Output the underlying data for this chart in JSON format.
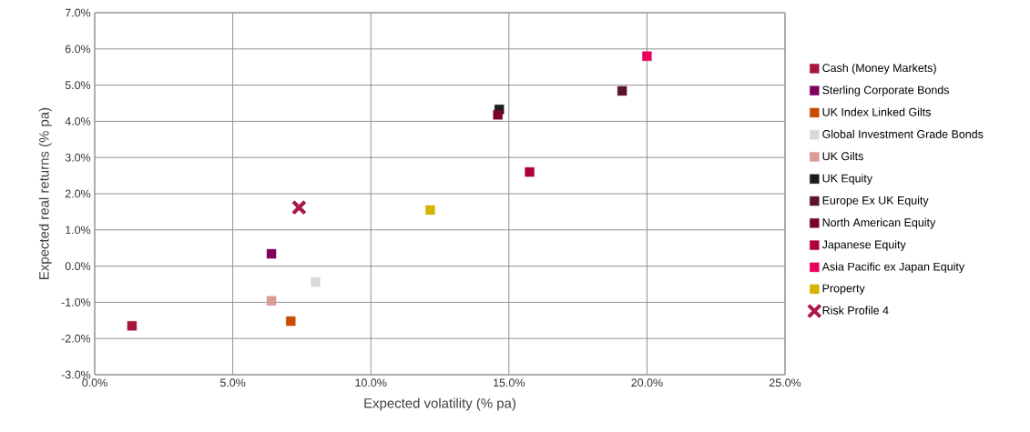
{
  "chart_data": {
    "type": "scatter",
    "xlabel": "Expected volatility (% pa)",
    "ylabel": "Expected real returns (% pa)",
    "xlim": [
      0,
      25
    ],
    "ylim": [
      -3,
      7
    ],
    "xticks": [
      {
        "value": 0,
        "label": "0.0%"
      },
      {
        "value": 5,
        "label": "5.0%"
      },
      {
        "value": 10,
        "label": "10.0%"
      },
      {
        "value": 15,
        "label": "15.0%"
      },
      {
        "value": 20,
        "label": "20.0%"
      },
      {
        "value": 25,
        "label": "25.0%"
      }
    ],
    "yticks": [
      {
        "value": -3,
        "label": "-3.0%"
      },
      {
        "value": -2,
        "label": "-2.0%"
      },
      {
        "value": -1,
        "label": "-1.0%"
      },
      {
        "value": 0,
        "label": "0.0%"
      },
      {
        "value": 1,
        "label": "1.0%"
      },
      {
        "value": 2,
        "label": "2.0%"
      },
      {
        "value": 3,
        "label": "3.0%"
      },
      {
        "value": 4,
        "label": "4.0%"
      },
      {
        "value": 5,
        "label": "5.0%"
      },
      {
        "value": 6,
        "label": "6.0%"
      },
      {
        "value": 7,
        "label": "7.0%"
      }
    ],
    "grid": true,
    "legend": "right",
    "series": [
      {
        "name": "Cash (Money Markets)",
        "color": "#a6163f",
        "marker": "square",
        "x": [
          1.35
        ],
        "values": [
          -1.65
        ]
      },
      {
        "name": "Sterling Corporate Bonds",
        "color": "#800060",
        "marker": "square",
        "x": [
          6.4
        ],
        "values": [
          0.34
        ]
      },
      {
        "name": "UK Index Linked Gilts",
        "color": "#c84b00",
        "marker": "square",
        "x": [
          7.1
        ],
        "values": [
          -1.52
        ]
      },
      {
        "name": "Global Investment Grade Bonds",
        "color": "#d9d9d9",
        "marker": "square",
        "x": [
          8.0
        ],
        "values": [
          -0.44
        ]
      },
      {
        "name": "UK Gilts",
        "color": "#d99b94",
        "marker": "square",
        "x": [
          6.4
        ],
        "values": [
          -0.96
        ]
      },
      {
        "name": "UK Equity",
        "color": "#1c1c18",
        "marker": "square",
        "x": [
          14.65
        ],
        "values": [
          4.33
        ]
      },
      {
        "name": "Europe Ex UK Equity",
        "color": "#5c1528",
        "marker": "square",
        "x": [
          19.1
        ],
        "values": [
          4.84
        ]
      },
      {
        "name": "North American Equity",
        "color": "#7a0030",
        "marker": "square",
        "x": [
          14.6
        ],
        "values": [
          4.18
        ]
      },
      {
        "name": "Japanese Equity",
        "color": "#b0003a",
        "marker": "square",
        "x": [
          15.75
        ],
        "values": [
          2.6
        ]
      },
      {
        "name": "Asia Pacific ex Japan Equity",
        "color": "#e8005a",
        "marker": "square",
        "x": [
          20.0
        ],
        "values": [
          5.8
        ]
      },
      {
        "name": "Property",
        "color": "#d4b400",
        "marker": "square",
        "x": [
          12.15
        ],
        "values": [
          1.55
        ]
      },
      {
        "name": "Risk Profile 4",
        "color": "#a8194a",
        "marker": "cross",
        "x": [
          7.4
        ],
        "values": [
          1.62
        ]
      }
    ]
  }
}
